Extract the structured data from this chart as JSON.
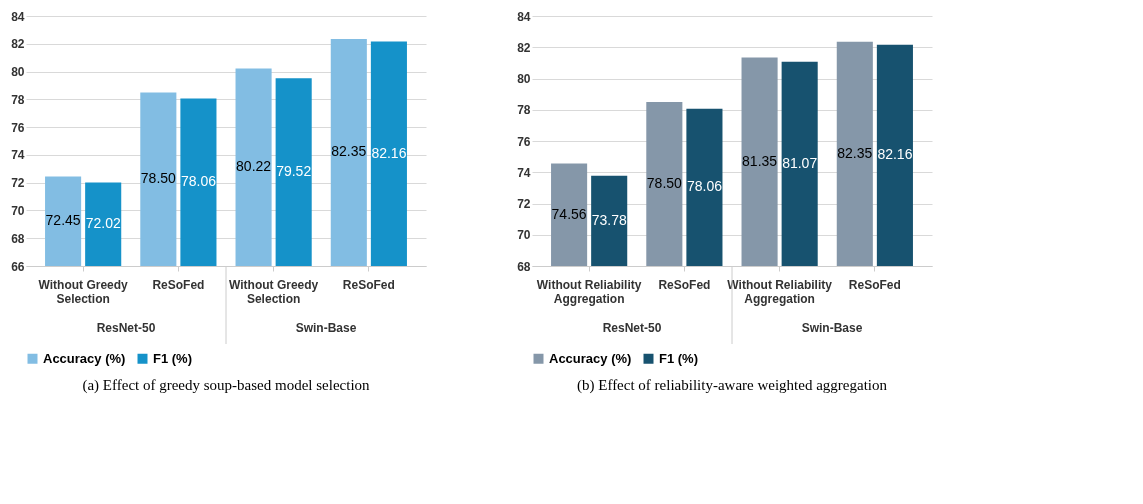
{
  "chart_data": [
    {
      "type": "bar",
      "title": "(a) Effect of greedy soup-based model selection",
      "categories": [
        "Without Greedy Selection",
        "ReSoFed",
        "Without Greedy Selection",
        "ReSoFed"
      ],
      "annotations": [
        "ResNet-50",
        "Swin-Base"
      ],
      "series": [
        {
          "name": "Accuracy (%)",
          "color": "#82bde3",
          "values": [
            72.45,
            78.5,
            80.22,
            82.35
          ],
          "value_labels": [
            "72.45",
            "78.50",
            "80.22",
            "82.35"
          ]
        },
        {
          "name": "F1 (%)",
          "color": "#1592c9",
          "values": [
            72.02,
            78.06,
            79.52,
            82.16
          ],
          "value_labels": [
            "72.02",
            "78.06",
            "79.52",
            "82.16"
          ]
        }
      ],
      "ylim": [
        66,
        84
      ],
      "yticks": [
        66,
        68,
        70,
        72,
        74,
        76,
        78,
        80,
        82,
        84
      ],
      "grid": "y",
      "legend": "bottom"
    },
    {
      "type": "bar",
      "title": "(b) Effect of reliability-aware weighted aggregation",
      "categories": [
        "Without Reliability Aggregation",
        "ReSoFed",
        "Without Reliability Aggregation",
        "ReSoFed"
      ],
      "annotations": [
        "ResNet-50",
        "Swin-Base"
      ],
      "series": [
        {
          "name": "Accuracy (%)",
          "color": "#8597a9",
          "values": [
            74.56,
            78.5,
            81.35,
            82.35
          ],
          "value_labels": [
            "74.56",
            "78.50",
            "81.35",
            "82.35"
          ]
        },
        {
          "name": "F1 (%)",
          "color": "#17526f",
          "values": [
            73.78,
            78.06,
            81.07,
            82.16
          ],
          "value_labels": [
            "73.78",
            "78.06",
            "81.07",
            "82.16"
          ]
        }
      ],
      "ylim": [
        68,
        84
      ],
      "yticks": [
        68,
        70,
        72,
        74,
        76,
        78,
        80,
        82,
        84
      ],
      "grid": "y",
      "legend": "bottom"
    }
  ]
}
